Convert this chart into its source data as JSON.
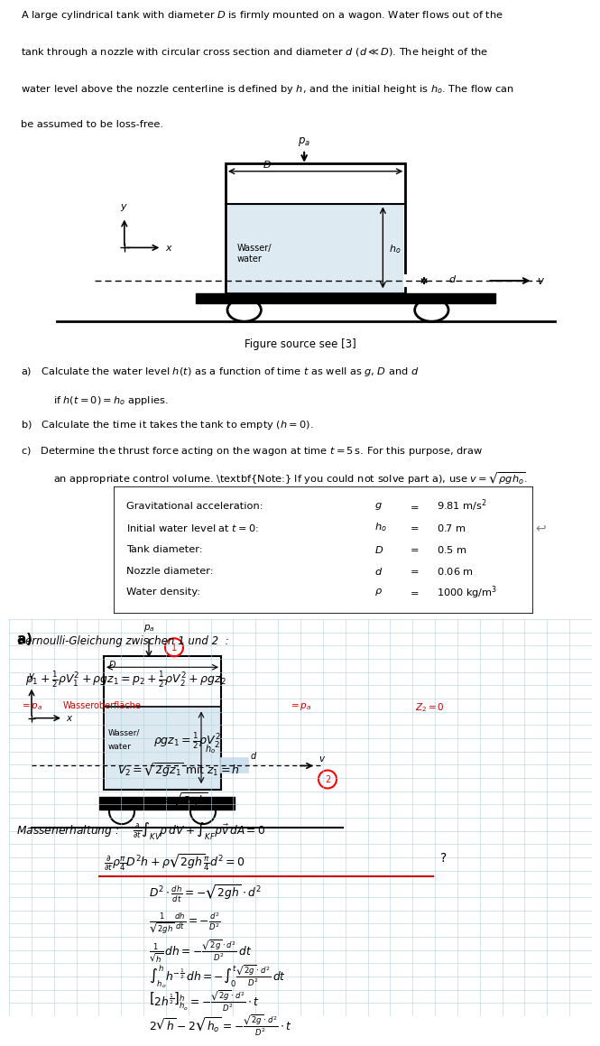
{
  "page_bg": "#ffffff",
  "handwritten_bg": "#cce0ee",
  "grid_color": "#b0cfe0",
  "red_color": "#cc0000",
  "black": "#000000",
  "top_text_lines": [
    "A large cylindrical tank with diameter $D$ is firmly mounted on a wagon. Water flows out of the",
    "tank through a nozzle with circular cross section and diameter $d$ ($d \\ll D$). The height of the",
    "water level above the nozzle centerline is defined by $h$, and the initial height is $h_o$. The flow can",
    "be assumed to be loss-free."
  ],
  "fig_caption": "Figure source see [3]",
  "qa": "a)   Calculate the water level $h(t)$ as a function of time $t$ as well as $g$, $D$ and $d$",
  "qa2": "     if $h(t=0) = h_o$ applies.",
  "qb": "b)   Calculate the time it takes the tank to empty ($h = 0$).",
  "qc1": "c)   Determine the thrust force acting on the wagon at time $t = 5\\,\\mathrm{s}$. For this purpose, draw",
  "qc2": "     an appropriate control volume. Note: If you could not solve part a), use $v = \\sqrt{\\rho g h_o}$.",
  "table_rows": [
    [
      "Gravitational acceleration:",
      "g",
      "9.81 m/s²"
    ],
    [
      "Initial water level at $t = 0$:",
      "h_o",
      "0.7 m"
    ],
    [
      "Tank diameter:",
      "D",
      "0.5 m"
    ],
    [
      "Nozzle diameter:",
      "d",
      "0.06 m"
    ],
    [
      "Water density:",
      "\\rho",
      "1000 kg/m³"
    ]
  ],
  "hw_label_a": "a)",
  "bernoulli_heading": "Bernoulli-Gleichung zwischen 1 und 2  :",
  "bernoulli_eq": "$p_1 + \\frac{1}{2}\\rho V_1^2 + \\rho g z_1 = p_2 + \\frac{1}{2}\\rho V_2^2 + \\rho g z_2$",
  "note1": "$= p_a$ Wasseroberäche",
  "note2": "$= p_a$",
  "note3": "$z_2 = 0$",
  "eq1": "$\\rho g z_1 = \\frac{1}{2}\\rho V_2^2$",
  "eq2": "$V_2 = \\sqrt{2gz_1}$ mit $z_1 = h$",
  "eq3": "$= \\sqrt{2gh}$",
  "mass_heading": "Massenerhaltung :",
  "mass_eq1": "$\\frac{\\partial}{\\partial t}\\int_{KV}\\rho\\,dV + \\int_{KF}\\rho\\vec{v}\\,dA = 0$",
  "mass_eq2": "$\\frac{\\partial}{\\partial t}\\rho\\frac{\\pi}{4}D^2 h + \\rho\\sqrt{2gh}\\frac{\\pi}{4}d^2 = 0$",
  "deriv1": "$D^2 \\cdot \\frac{dh}{dt} = -\\sqrt{2gh} \\cdot d^2$",
  "deriv2": "$\\frac{1}{\\sqrt{2gh}}\\frac{dh}{dt} = -\\frac{d^2}{D^2}$",
  "deriv3": "$\\frac{1}{\\sqrt{h}}\\,dh = -\\frac{\\sqrt{2g}\\cdot d^2}{D^2}\\,dt$",
  "deriv4": "$\\int_{h_o}^{h} h^{-\\frac{1}{2}}\\,dh = -\\int_0^t \\frac{\\sqrt{2g}\\cdot d^2}{D^2}\\,dt$",
  "deriv5": "$\\left[2h^{\\frac{1}{2}}\\right]_{h_o}^{h} = -\\frac{\\sqrt{2g}\\cdot d^2}{D^2}\\cdot t$",
  "deriv6": "$2\\sqrt{h} - 2\\sqrt{h_o} = -\\frac{\\sqrt{2g}\\cdot d^2}{D^2}\\cdot t$"
}
